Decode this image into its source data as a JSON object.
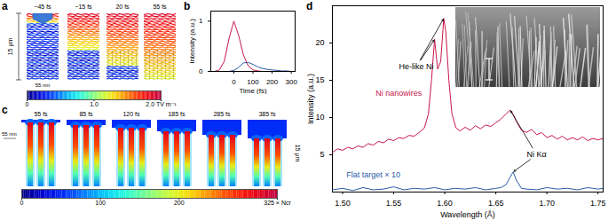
{
  "chart_data": [
    {
      "title": "a",
      "type": "heatmap",
      "categories": [
        "−45 fs",
        "−15 fs",
        "20 fs",
        "55 fs"
      ],
      "annotations": [
        "15 μm",
        "55 nm"
      ],
      "colorbar": {
        "range": [
          0,
          2
        ],
        "ticks": [
          0,
          {
            "value": 1,
            "label": "1.0"
          },
          {
            "value": 2,
            "label": "2.0 TV m⁻¹"
          }
        ]
      }
    },
    {
      "title": "b",
      "type": "line",
      "x_label": "Time (fs)",
      "y_label": "Intensity (a.u.)",
      "x": [
        -100,
        -75,
        -50,
        -25,
        0,
        25,
        50,
        75,
        100,
        125,
        150,
        175,
        200,
        225,
        250,
        275,
        300
      ],
      "series": [
        {
          "color": "#c8164b",
          "values": [
            0,
            0.03,
            0.2,
            0.65,
            1.0,
            0.72,
            0.33,
            0.11,
            0.03,
            0.01,
            0,
            0,
            0,
            0,
            0,
            0,
            0
          ]
        },
        {
          "color": "#2c5aa8",
          "values": [
            0,
            0,
            0,
            0,
            0.02,
            0.08,
            0.17,
            0.18,
            0.14,
            0.09,
            0.06,
            0.04,
            0.03,
            0.02,
            0.01,
            0.01,
            0
          ]
        }
      ],
      "xlim": [
        -120,
        320
      ],
      "xticks": [
        0,
        100,
        200,
        300
      ],
      "ylim": [
        0,
        1.2
      ],
      "yticks": [
        0,
        1
      ]
    },
    {
      "title": "c",
      "type": "heatmap",
      "categories": [
        "55 fs",
        "85 fs",
        "120 fs",
        "185 fs",
        "285 fs",
        "385 fs"
      ],
      "annotations": [
        "55 nm",
        "15 μm"
      ],
      "colorbar": {
        "range": [
          0,
          325
        ],
        "ticks": [
          0,
          100,
          200,
          {
            "value": 325,
            "label": "325 × Ncr"
          }
        ]
      }
    },
    {
      "title": "d",
      "type": "line",
      "x_label": "Wavelength (Å)",
      "y_label": "Intensity (a.u.)",
      "series": [
        {
          "color": "#c8164b",
          "x": [
            1.49,
            1.495,
            1.5,
            1.505,
            1.51,
            1.515,
            1.52,
            1.525,
            1.53,
            1.535,
            1.54,
            1.545,
            1.55,
            1.555,
            1.56,
            1.565,
            1.57,
            1.575,
            1.58,
            1.584,
            1.587,
            1.59,
            1.593,
            1.596,
            1.599,
            1.601,
            1.604,
            1.607,
            1.611,
            1.615,
            1.62,
            1.625,
            1.63,
            1.635,
            1.64,
            1.645,
            1.65,
            1.655,
            1.66,
            1.664,
            1.667,
            1.67,
            1.675,
            1.68,
            1.685,
            1.69,
            1.695,
            1.7,
            1.705,
            1.71,
            1.715,
            1.72,
            1.725,
            1.73,
            1.735,
            1.74,
            1.745,
            1.75,
            1.755
          ],
          "values": [
            5.3,
            5.8,
            5.6,
            6.0,
            5.8,
            6.2,
            6.0,
            6.5,
            6.3,
            6.8,
            6.6,
            7.1,
            6.9,
            7.3,
            7.2,
            7.6,
            7.5,
            8.0,
            8.6,
            10.5,
            15.0,
            20.5,
            16.5,
            17.5,
            23.3,
            21.5,
            15.0,
            10.5,
            8.6,
            8.2,
            8.7,
            8.3,
            8.9,
            8.5,
            9.0,
            8.8,
            9.3,
            9.8,
            10.5,
            11.0,
            10.4,
            9.5,
            8.3,
            8.0,
            8.4,
            7.7,
            8.0,
            7.3,
            7.6,
            7.1,
            7.5,
            7.0,
            7.3,
            7.0,
            7.4,
            6.9,
            7.2,
            7.0,
            7.2
          ]
        },
        {
          "color": "#2c5aa8",
          "x": [
            1.49,
            1.5,
            1.51,
            1.52,
            1.53,
            1.54,
            1.55,
            1.56,
            1.57,
            1.58,
            1.59,
            1.6,
            1.61,
            1.62,
            1.63,
            1.64,
            1.65,
            1.655,
            1.66,
            1.664,
            1.667,
            1.67,
            1.675,
            1.68,
            1.69,
            1.7,
            1.71,
            1.72,
            1.73,
            1.74,
            1.75,
            1.755
          ],
          "values": [
            0.3,
            0.5,
            0.2,
            0.6,
            0.3,
            0.4,
            0.7,
            0.3,
            0.5,
            0.4,
            0.6,
            0.3,
            0.5,
            0.4,
            0.6,
            0.3,
            0.5,
            0.6,
            1.0,
            2.0,
            2.7,
            1.6,
            0.5,
            0.4,
            0.3,
            0.6,
            0.4,
            0.5,
            0.3,
            0.6,
            0.4,
            0.5
          ]
        }
      ],
      "xlim": [
        1.49,
        1.755
      ],
      "xticks": [
        {
          "value": 1.5,
          "label": "1.50"
        },
        1.55,
        {
          "value": 1.6,
          "label": "1.60"
        },
        1.65,
        {
          "value": 1.7,
          "label": "1.70"
        },
        1.75
      ],
      "ylim": [
        0,
        25
      ],
      "yticks": [
        5,
        10,
        15,
        20
      ],
      "annotations": [
        {
          "text": "Ni nanowires",
          "x": 1.555,
          "y": 13.3,
          "color": "#c8164b",
          "targets": []
        },
        {
          "text": "He-like Ni",
          "x": 1.572,
          "y": 16.8,
          "color": "#000000",
          "targets": [
            [
              1.59,
              20.5
            ],
            [
              1.599,
              23.3
            ]
          ]
        },
        {
          "text": "Ni Kα",
          "x": 1.69,
          "y": 5.0,
          "color": "#000000",
          "targets": [
            [
              1.664,
              11.0
            ],
            [
              1.667,
              2.7
            ]
          ]
        },
        {
          "text": "Flat target × 10",
          "x": 1.53,
          "y": 2.3,
          "color": "#2c5aa8",
          "targets": []
        }
      ]
    }
  ]
}
